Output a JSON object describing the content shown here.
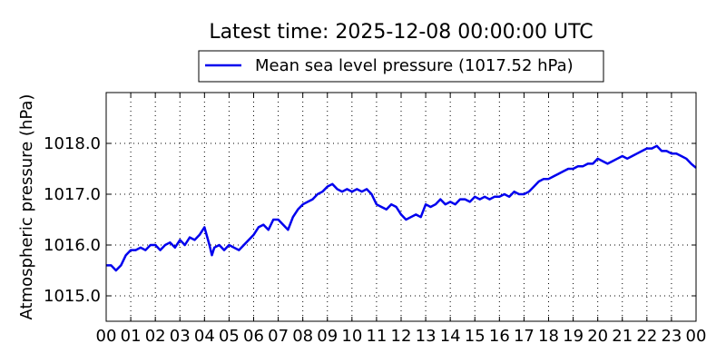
{
  "chart_data": {
    "type": "line",
    "title": "Latest time: 2025-12-08 00:00:00 UTC",
    "xlabel": "",
    "ylabel": "Atmospheric pressure (hPa)",
    "xlim": [
      0,
      24
    ],
    "ylim": [
      1014.5,
      1019.0
    ],
    "x_ticks": [
      0,
      1,
      2,
      3,
      4,
      5,
      6,
      7,
      8,
      9,
      10,
      11,
      12,
      13,
      14,
      15,
      16,
      17,
      18,
      19,
      20,
      21,
      22,
      23,
      24
    ],
    "x_tick_labels": [
      "00",
      "01",
      "02",
      "03",
      "04",
      "05",
      "06",
      "07",
      "08",
      "09",
      "10",
      "11",
      "12",
      "13",
      "14",
      "15",
      "16",
      "17",
      "18",
      "19",
      "20",
      "21",
      "22",
      "23",
      "00"
    ],
    "y_ticks": [
      1015.0,
      1016.0,
      1017.0,
      1018.0
    ],
    "y_tick_labels": [
      "1015.0",
      "1016.0",
      "1017.0",
      "1018.0"
    ],
    "grid": true,
    "legend_position": "top-center",
    "series": [
      {
        "name": "Mean sea level pressure (1017.52 hPa)",
        "color": "#0000ee",
        "x": [
          0,
          0.2,
          0.4,
          0.6,
          0.8,
          1.0,
          1.2,
          1.4,
          1.6,
          1.8,
          2.0,
          2.2,
          2.4,
          2.6,
          2.8,
          3.0,
          3.2,
          3.4,
          3.6,
          3.8,
          4.0,
          4.2,
          4.3,
          4.4,
          4.6,
          4.8,
          5.0,
          5.2,
          5.4,
          5.6,
          5.8,
          6.0,
          6.2,
          6.4,
          6.6,
          6.8,
          7.0,
          7.2,
          7.4,
          7.6,
          7.8,
          8.0,
          8.2,
          8.4,
          8.6,
          8.8,
          9.0,
          9.2,
          9.4,
          9.6,
          9.8,
          10.0,
          10.2,
          10.4,
          10.6,
          10.8,
          11.0,
          11.2,
          11.4,
          11.6,
          11.8,
          12.0,
          12.2,
          12.4,
          12.6,
          12.8,
          13.0,
          13.2,
          13.4,
          13.6,
          13.8,
          14.0,
          14.2,
          14.4,
          14.6,
          14.8,
          15.0,
          15.2,
          15.4,
          15.6,
          15.8,
          16.0,
          16.2,
          16.4,
          16.6,
          16.8,
          17.0,
          17.2,
          17.4,
          17.6,
          17.8,
          18.0,
          18.2,
          18.4,
          18.6,
          18.8,
          19.0,
          19.2,
          19.4,
          19.6,
          19.8,
          20.0,
          20.2,
          20.4,
          20.6,
          20.8,
          21.0,
          21.2,
          21.4,
          21.6,
          21.8,
          22.0,
          22.2,
          22.4,
          22.6,
          22.8,
          23.0,
          23.2,
          23.4,
          23.6,
          23.8,
          24.0
        ],
        "values": [
          1015.6,
          1015.6,
          1015.5,
          1015.6,
          1015.8,
          1015.9,
          1015.9,
          1015.95,
          1015.9,
          1016.0,
          1016.0,
          1015.9,
          1016.0,
          1016.05,
          1015.95,
          1016.1,
          1016.0,
          1016.15,
          1016.1,
          1016.2,
          1016.35,
          1016.0,
          1015.8,
          1015.95,
          1016.0,
          1015.9,
          1016.0,
          1015.95,
          1015.9,
          1016.0,
          1016.1,
          1016.2,
          1016.35,
          1016.4,
          1016.3,
          1016.5,
          1016.5,
          1016.4,
          1016.3,
          1016.55,
          1016.7,
          1016.8,
          1016.85,
          1016.9,
          1017.0,
          1017.05,
          1017.15,
          1017.2,
          1017.1,
          1017.05,
          1017.1,
          1017.05,
          1017.1,
          1017.05,
          1017.1,
          1017.0,
          1016.8,
          1016.75,
          1016.7,
          1016.8,
          1016.75,
          1016.6,
          1016.5,
          1016.55,
          1016.6,
          1016.55,
          1016.8,
          1016.75,
          1016.8,
          1016.9,
          1016.8,
          1016.85,
          1016.8,
          1016.9,
          1016.9,
          1016.85,
          1016.95,
          1016.9,
          1016.95,
          1016.9,
          1016.95,
          1016.95,
          1017.0,
          1016.95,
          1017.05,
          1017.0,
          1017.0,
          1017.05,
          1017.15,
          1017.25,
          1017.3,
          1017.3,
          1017.35,
          1017.4,
          1017.45,
          1017.5,
          1017.5,
          1017.55,
          1017.55,
          1017.6,
          1017.6,
          1017.7,
          1017.65,
          1017.6,
          1017.65,
          1017.7,
          1017.75,
          1017.7,
          1017.75,
          1017.8,
          1017.85,
          1017.9,
          1017.9,
          1017.95,
          1017.85,
          1017.85,
          1017.8,
          1017.8,
          1017.75,
          1017.7,
          1017.6,
          1017.52
        ]
      }
    ]
  }
}
